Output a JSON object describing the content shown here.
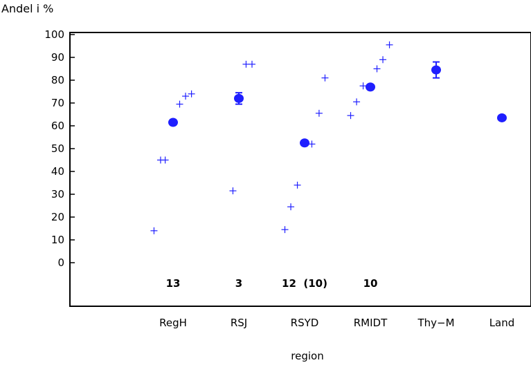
{
  "chart_data": {
    "type": "scatter",
    "ylabel": "Andel i %",
    "xlabel": "region",
    "ylim": [
      0,
      100
    ],
    "yticks": [
      0,
      10,
      20,
      30,
      40,
      50,
      60,
      70,
      80,
      90,
      100
    ],
    "categories": [
      "RegH",
      "RSJ",
      "RSYD",
      "RMIDT",
      "Thy−M",
      "Land"
    ],
    "counts": [
      {
        "category": "RegH",
        "label": "13"
      },
      {
        "category": "RSJ",
        "label": "3"
      },
      {
        "category": "RSYD",
        "label": "12  (10)"
      },
      {
        "category": "RMIDT",
        "label": "10"
      }
    ],
    "series": [
      {
        "marker": "circle",
        "points": [
          {
            "x": "RegH",
            "y": 61.5,
            "err": 1.2
          },
          {
            "x": "RSJ",
            "y": 72,
            "err": 2.5
          },
          {
            "x": "RSYD",
            "y": 52.5,
            "err": 1
          },
          {
            "x": "RMIDT",
            "y": 77,
            "err": 1
          },
          {
            "x": "Thy−M",
            "y": 84.5,
            "err": 3.5
          },
          {
            "x": "Land",
            "y": 63.5,
            "err": 0.8
          }
        ]
      },
      {
        "marker": "plus",
        "points": [
          {
            "x": "RegH",
            "dx": -0.29,
            "y": 14
          },
          {
            "x": "RegH",
            "dx": -0.19,
            "y": 45
          },
          {
            "x": "RegH",
            "dx": -0.12,
            "y": 45
          },
          {
            "x": "RegH",
            "dx": 0.1,
            "y": 69.5
          },
          {
            "x": "RegH",
            "dx": 0.19,
            "y": 73
          },
          {
            "x": "RegH",
            "dx": 0.28,
            "y": 74
          },
          {
            "x": "RSJ",
            "dx": -0.09,
            "y": 31.5
          },
          {
            "x": "RSJ",
            "dx": 0.11,
            "y": 87
          },
          {
            "x": "RSJ",
            "dx": 0.2,
            "y": 87
          },
          {
            "x": "RSYD",
            "dx": -0.3,
            "y": 14.5
          },
          {
            "x": "RSYD",
            "dx": -0.21,
            "y": 24.5
          },
          {
            "x": "RSYD",
            "dx": -0.11,
            "y": 34
          },
          {
            "x": "RSYD",
            "dx": 0.11,
            "y": 52
          },
          {
            "x": "RSYD",
            "dx": 0.22,
            "y": 65.5
          },
          {
            "x": "RSYD",
            "dx": 0.31,
            "y": 81
          },
          {
            "x": "RMIDT",
            "dx": -0.3,
            "y": 64.5
          },
          {
            "x": "RMIDT",
            "dx": -0.21,
            "y": 70.5
          },
          {
            "x": "RMIDT",
            "dx": -0.11,
            "y": 77.5
          },
          {
            "x": "RMIDT",
            "dx": 0.1,
            "y": 85
          },
          {
            "x": "RMIDT",
            "dx": 0.19,
            "y": 89
          },
          {
            "x": "RMIDT",
            "dx": 0.29,
            "y": 95.5
          }
        ]
      }
    ],
    "colors": {
      "marker": "#1f1fff",
      "axis": "#000000"
    },
    "grid": false
  }
}
